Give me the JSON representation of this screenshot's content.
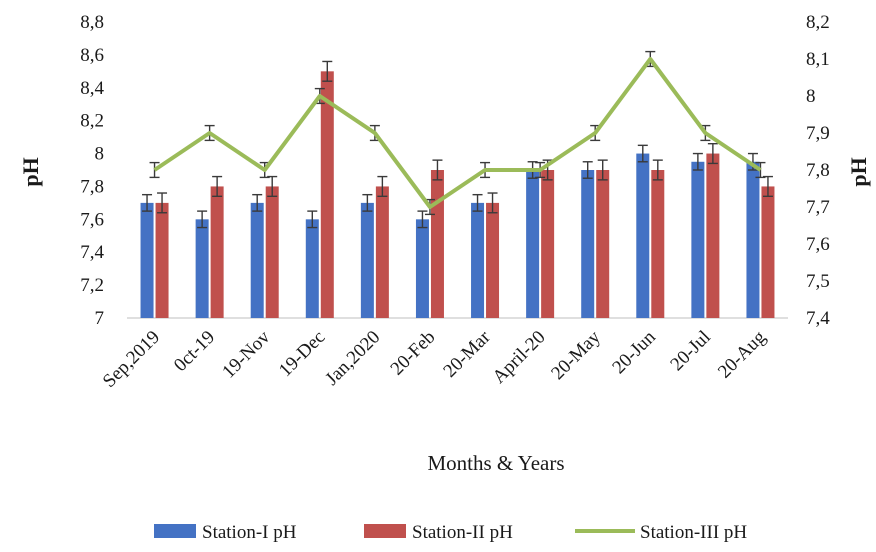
{
  "chart_data": {
    "type": "bar",
    "categories": [
      "Sep,2019",
      "0ct-19",
      "19-Nov",
      "19-Dec",
      "Jan,2020",
      "20-Feb",
      "20-Mar",
      "April-20",
      "20-May",
      "20-Jun",
      "20-Jul",
      "20-Aug"
    ],
    "xlabel": "Months & Years",
    "ylabel_left": "pH",
    "ylabel_right": "pH",
    "ylim_left": [
      7,
      8.8
    ],
    "ylim_right": [
      7.4,
      8.2
    ],
    "yticks_left": [
      "7",
      "7,2",
      "7,4",
      "7,6",
      "7,8",
      "8",
      "8,2",
      "8,4",
      "8,6",
      "8,8"
    ],
    "yticks_right": [
      "7,4",
      "7,5",
      "7,6",
      "7,7",
      "7,8",
      "7,9",
      "8",
      "8,1",
      "8,2"
    ],
    "grid": false,
    "legend_position": "bottom",
    "series": [
      {
        "name": "Station-I pH",
        "type": "bar",
        "axis": "left",
        "color": "#4472c4",
        "values": [
          7.7,
          7.6,
          7.7,
          7.6,
          7.7,
          7.6,
          7.7,
          7.9,
          7.9,
          8.0,
          7.95,
          7.95
        ],
        "error": 0.05
      },
      {
        "name": "Station-II pH",
        "type": "bar",
        "axis": "left",
        "color": "#c0504d",
        "values": [
          7.7,
          7.8,
          7.8,
          8.5,
          7.8,
          7.9,
          7.7,
          7.9,
          7.9,
          7.9,
          8.0,
          7.8
        ],
        "error": 0.06
      },
      {
        "name": "Station-III pH",
        "type": "line",
        "axis": "right",
        "color": "#9bbb59",
        "values": [
          7.8,
          7.9,
          7.8,
          8.0,
          7.9,
          7.7,
          7.8,
          7.8,
          7.9,
          8.1,
          7.9,
          7.8
        ],
        "error": 0.02
      }
    ]
  }
}
